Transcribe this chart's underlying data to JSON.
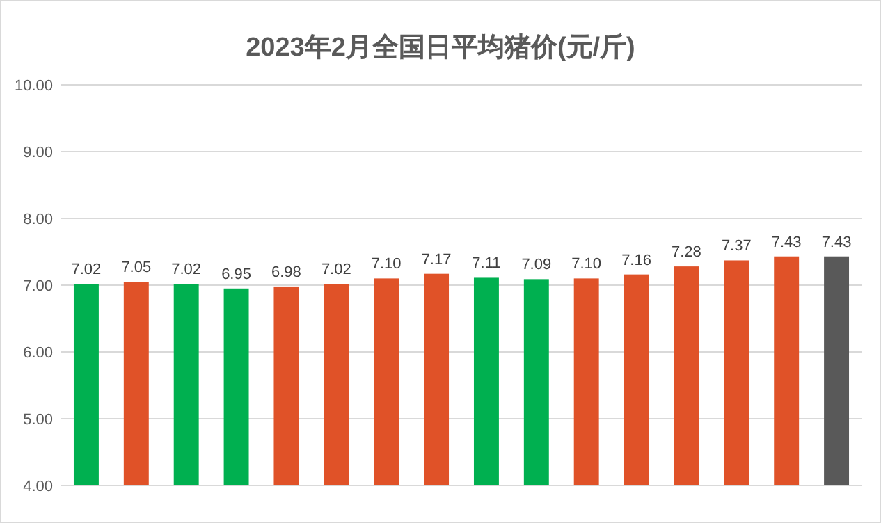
{
  "chart_data": {
    "type": "bar",
    "title": "2023年2月全国日平均猪价(元/斤)",
    "categories": [
      null,
      null,
      null,
      null,
      null,
      null,
      null,
      null,
      null,
      null,
      null,
      null,
      null,
      null,
      null,
      null
    ],
    "values": [
      7.02,
      7.05,
      7.02,
      6.95,
      6.98,
      7.02,
      7.1,
      7.17,
      7.11,
      7.09,
      7.1,
      7.16,
      7.28,
      7.37,
      7.43,
      7.43
    ],
    "value_labels": [
      "7.02",
      "7.05",
      "7.02",
      "6.95",
      "6.98",
      "7.02",
      "7.10",
      "7.17",
      "7.11",
      "7.09",
      "7.10",
      "7.16",
      "7.28",
      "7.37",
      "7.43",
      "7.43"
    ],
    "colors": [
      "#00b050",
      "#e05228",
      "#00b050",
      "#00b050",
      "#e05228",
      "#e05228",
      "#e05228",
      "#e05228",
      "#00b050",
      "#00b050",
      "#e05228",
      "#e05228",
      "#e05228",
      "#e05228",
      "#e05228",
      "#595959"
    ],
    "ylim": [
      4,
      10
    ],
    "yticks": [
      {
        "value": 4,
        "label": "4.00"
      },
      {
        "value": 5,
        "label": "5.00"
      },
      {
        "value": 6,
        "label": "6.00"
      },
      {
        "value": 7,
        "label": "7.00"
      },
      {
        "value": 8,
        "label": "8.00"
      },
      {
        "value": 9,
        "label": "9.00"
      },
      {
        "value": 10,
        "label": "10.00"
      }
    ],
    "grid": true
  }
}
